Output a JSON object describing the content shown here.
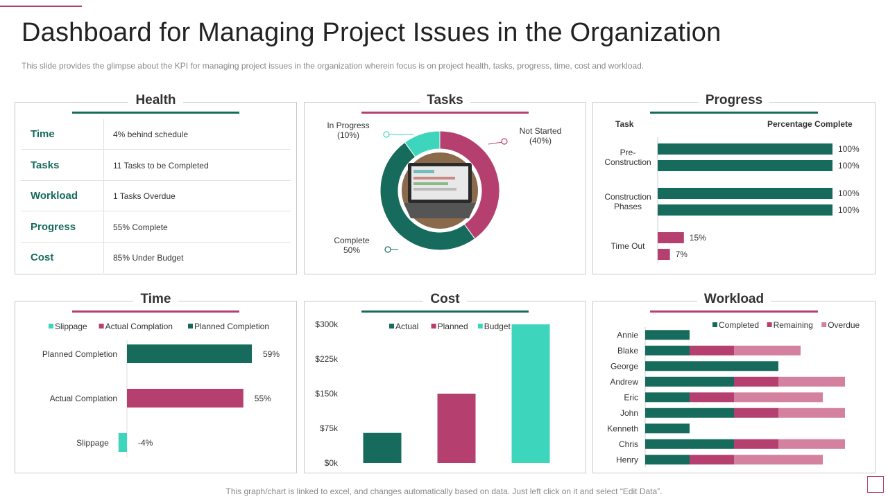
{
  "page": {
    "title": "Dashboard for Managing Project Issues in the Organization",
    "subtitle": "This slide provides  the glimpse about the KPI for managing  project issues in the organization wherein  focus is on project health, tasks, progress, time, cost and workload.",
    "footer": "This graph/chart is linked to excel,  and changes automatically based on data. Just left click on it and select “Edit Data”.",
    "colors": {
      "green": "#166b5c",
      "pink": "#b5406f",
      "teal": "#3dd6bd",
      "light_pink": "#d4809f"
    }
  },
  "health": {
    "title": "Health",
    "rows": [
      {
        "label": "Time",
        "value": "4% behind schedule"
      },
      {
        "label": "Tasks",
        "value": "11 Tasks to be Completed"
      },
      {
        "label": "Workload",
        "value": "1 Tasks Overdue"
      },
      {
        "label": "Progress",
        "value": "55% Complete"
      },
      {
        "label": "Cost",
        "value": "85% Under Budget"
      }
    ]
  },
  "tasks": {
    "title": "Tasks",
    "photo_icon": "laptop-photo-icon"
  },
  "progress": {
    "title": "Progress",
    "col_task": "Task",
    "col_percent": "Percentage Complete"
  },
  "time": {
    "title": "Time"
  },
  "cost": {
    "title": "Cost"
  },
  "workload": {
    "title": "Workload"
  },
  "chart_data": [
    {
      "id": "tasks",
      "type": "pie",
      "title": "Tasks",
      "slices": [
        {
          "name": "Not Started",
          "value": 40,
          "label": "Not Started",
          "pct_label": "(40%)",
          "color": "#b5406f"
        },
        {
          "name": "Complete",
          "value": 50,
          "label": "Complete",
          "pct_label": "50%",
          "color": "#166b5c"
        },
        {
          "name": "In Progress",
          "value": 10,
          "label": "In Progress",
          "pct_label": "(10%)",
          "color": "#3dd6bd"
        }
      ]
    },
    {
      "id": "progress",
      "type": "bar",
      "orientation": "horizontal",
      "title": "Progress",
      "groups": [
        {
          "label": "Pre- Construction",
          "label_lines": [
            "Pre-",
            "Construction"
          ],
          "values": [
            100,
            100
          ],
          "labels": [
            "100%",
            "100%"
          ],
          "color": "#166b5c"
        },
        {
          "label": "Construction Phases",
          "label_lines": [
            "Construction",
            "Phases"
          ],
          "values": [
            100,
            100
          ],
          "labels": [
            "100%",
            "100%"
          ],
          "color": "#166b5c"
        },
        {
          "label": "Time Out",
          "label_lines": [
            "Time Out"
          ],
          "values": [
            15,
            7
          ],
          "labels": [
            "15%",
            "7%"
          ],
          "color": "#b5406f"
        }
      ],
      "xlim": [
        0,
        100
      ]
    },
    {
      "id": "time",
      "type": "bar",
      "orientation": "horizontal",
      "title": "Time",
      "legend": [
        {
          "name": "Slippage",
          "color": "#3dd6bd"
        },
        {
          "name": "Actual Complation",
          "color": "#b5406f"
        },
        {
          "name": "Planned Completion",
          "color": "#166b5c"
        }
      ],
      "categories": [
        "Planned Completion",
        "Actual Complation",
        "Slippage"
      ],
      "values": [
        59,
        55,
        -4
      ],
      "value_labels": [
        "59%",
        "55%",
        "-4%"
      ],
      "colors": [
        "#166b5c",
        "#b5406f",
        "#3dd6bd"
      ],
      "xlim": [
        -5,
        70
      ]
    },
    {
      "id": "cost",
      "type": "bar",
      "title": "Cost",
      "categories": [
        "Actual",
        "Planned",
        "Budget"
      ],
      "values": [
        65000,
        150000,
        300000
      ],
      "colors": [
        "#166b5c",
        "#b5406f",
        "#3dd6bd"
      ],
      "ylim": [
        0,
        300000
      ],
      "yticks": [
        0,
        75000,
        150000,
        225000,
        300000
      ],
      "ytick_labels": [
        "$0k",
        "$75k",
        "$150k",
        "$225k",
        "$300k"
      ],
      "legend": [
        {
          "name": "Actual",
          "color": "#166b5c"
        },
        {
          "name": "Planned",
          "color": "#b5406f"
        },
        {
          "name": "Budget",
          "color": "#3dd6bd"
        }
      ]
    },
    {
      "id": "workload",
      "type": "bar",
      "orientation": "horizontal",
      "stacked": true,
      "title": "Workload",
      "categories": [
        "Annie",
        "Blake",
        "George",
        "Andrew",
        "Eric",
        "John",
        "Kenneth",
        "Chris",
        "Henry"
      ],
      "series": [
        {
          "name": "Completed",
          "color": "#166b5c",
          "values": [
            1,
            1,
            3,
            2,
            1,
            2,
            1,
            2,
            1
          ]
        },
        {
          "name": "Remaining",
          "color": "#b5406f",
          "values": [
            0,
            1,
            0,
            1,
            1,
            1,
            0,
            1,
            1
          ]
        },
        {
          "name": "Overdue",
          "color": "#d4809f",
          "values": [
            0,
            1.5,
            0,
            1.5,
            2,
            1.5,
            0,
            1.5,
            2
          ]
        }
      ],
      "xlim": [
        0,
        5
      ]
    }
  ]
}
